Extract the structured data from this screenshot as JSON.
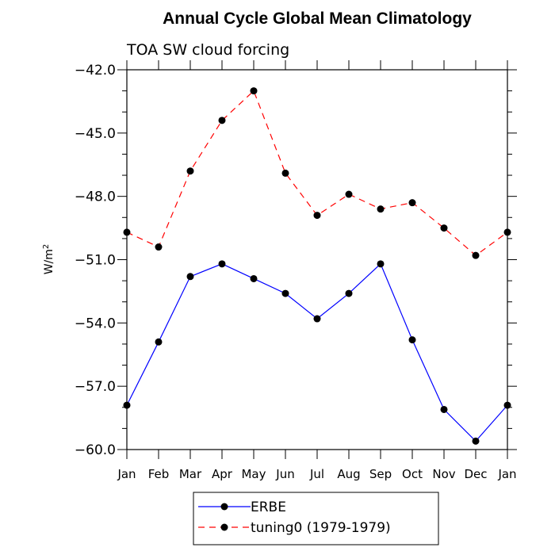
{
  "chart_data": {
    "type": "line",
    "title": "Annual Cycle Global Mean Climatology",
    "subtitle": "TOA SW cloud forcing",
    "ylabel": "W/m",
    "ylabel_sup": "2",
    "xlabel": "",
    "categories": [
      "Jan",
      "Feb",
      "Mar",
      "Apr",
      "May",
      "Jun",
      "Jul",
      "Aug",
      "Sep",
      "Oct",
      "Nov",
      "Dec",
      "Jan"
    ],
    "ylim": [
      -60.0,
      -42.0
    ],
    "yticks": [
      -42.0,
      -45.0,
      -48.0,
      -51.0,
      -54.0,
      -57.0,
      -60.0
    ],
    "ytick_labels": [
      "-42.0",
      "-45.0",
      "-48.0",
      "-51.0",
      "-54.0",
      "-57.0",
      "-60.0"
    ],
    "grid": false,
    "legend_position": "bottom-center",
    "series": [
      {
        "name": "ERBE",
        "color": "#0000ff",
        "dash": "solid",
        "values": [
          -57.9,
          -54.9,
          -51.8,
          -51.2,
          -51.9,
          -52.6,
          -53.8,
          -52.6,
          -51.2,
          -54.8,
          -58.1,
          -59.6,
          -57.9
        ]
      },
      {
        "name": "tuning0 (1979-1979)",
        "color": "#ff0000",
        "dash": "dashed",
        "values": [
          -49.7,
          -50.4,
          -46.8,
          -44.4,
          -43.0,
          -46.9,
          -48.9,
          -47.9,
          -48.6,
          -48.3,
          -49.5,
          -50.8,
          -49.7
        ]
      }
    ]
  }
}
